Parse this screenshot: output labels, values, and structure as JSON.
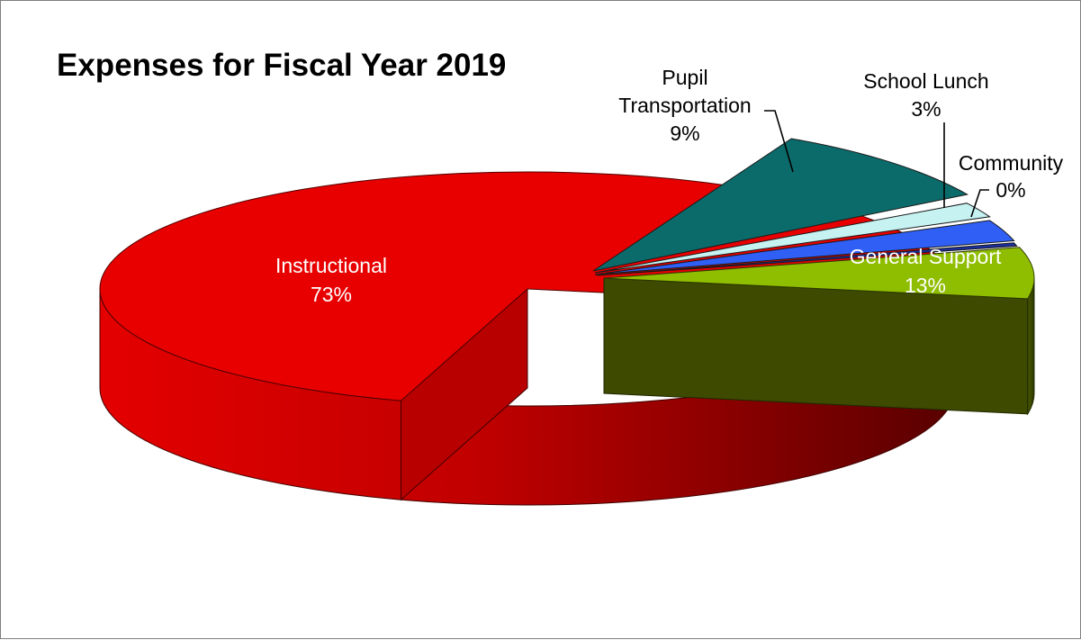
{
  "chart_data": {
    "type": "pie",
    "style": "3d-exploded",
    "title": "Expenses for Fiscal Year 2019",
    "slices": [
      {
        "name": "Instructional",
        "label": "Instructional",
        "value": 73,
        "percent_label": "73%",
        "color": "#e00000",
        "exploded": true
      },
      {
        "name": "General Support",
        "label": "General Support",
        "value": 13,
        "percent_label": "13%",
        "color": "#8fbd00",
        "exploded": true
      },
      {
        "name": "Community",
        "label": "Community",
        "value": 0.3,
        "percent_label": "0%",
        "color": "#1a2fa0",
        "exploded": false
      },
      {
        "name": "School Lunch",
        "label": "School Lunch",
        "value": 3,
        "percent_label": "3%",
        "color": "#2f5ff5",
        "exploded": false
      },
      {
        "name": "Pupil Transportation",
        "label_lines": [
          "Pupil",
          "Transportation"
        ],
        "value": 9,
        "percent_label": "9%",
        "color": "#0b6b6b",
        "exploded": false
      },
      {
        "name": "Other (unlabeled)",
        "value": 1.7,
        "color": "#c6f2f2",
        "exploded": false
      }
    ]
  }
}
